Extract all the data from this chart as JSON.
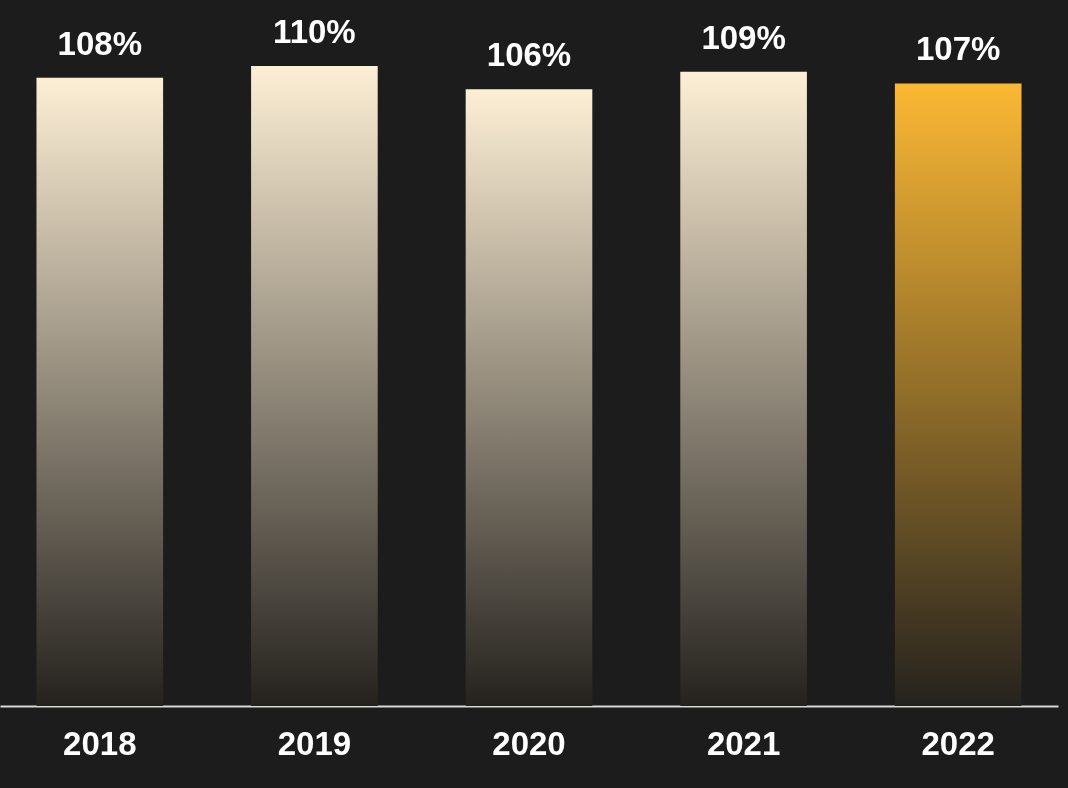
{
  "chart_data": {
    "type": "bar",
    "categories": [
      "2018",
      "2019",
      "2020",
      "2021",
      "2022"
    ],
    "values": [
      108,
      110,
      106,
      109,
      107
    ],
    "value_labels": [
      "108%",
      "110%",
      "106%",
      "109%",
      "107%"
    ],
    "colors": [
      "#fdefd5",
      "#fdefd5",
      "#fdefd5",
      "#fdefd5",
      "#fbb834"
    ],
    "tick_labels": "x",
    "grid": false
  }
}
